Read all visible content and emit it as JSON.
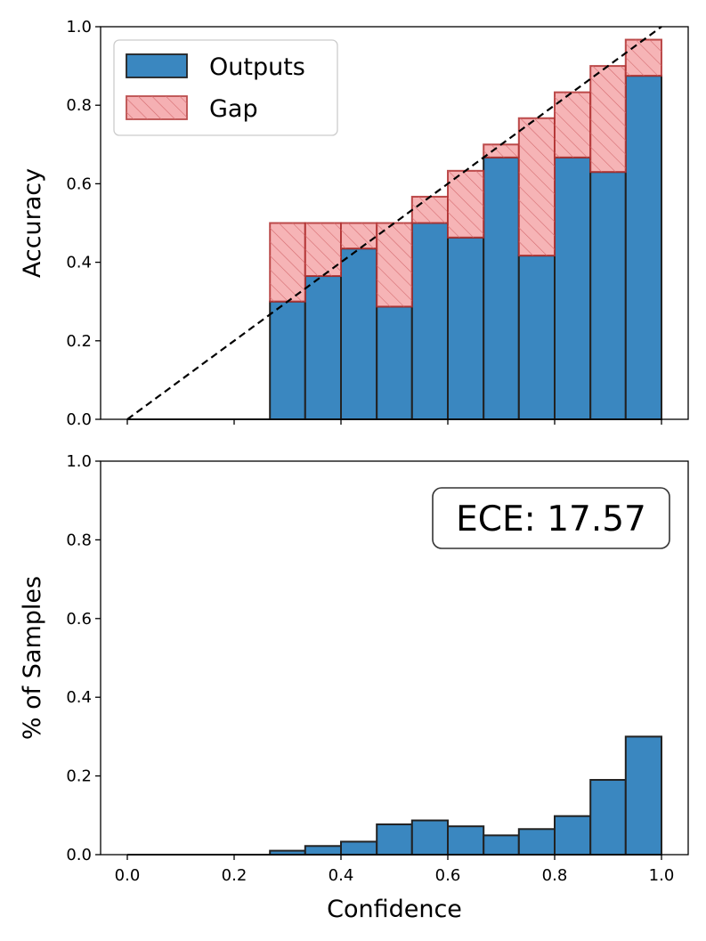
{
  "chart_data": [
    {
      "type": "bar",
      "subtype": "reliability-diagram",
      "title": "",
      "xlabel": "",
      "ylabel": "Accuracy",
      "xlim": [
        -0.05,
        1.05
      ],
      "ylim": [
        0.0,
        1.0
      ],
      "yticks": [
        "0.0",
        "0.2",
        "0.4",
        "0.6",
        "0.8",
        "1.0"
      ],
      "xtick_values": [
        0.0,
        0.2,
        0.4,
        0.6,
        0.8,
        1.0
      ],
      "grid": false,
      "legend": {
        "placement": "top-left",
        "entries": [
          "Outputs",
          "Gap"
        ]
      },
      "bin_edges": [
        0.267,
        0.333,
        0.4,
        0.467,
        0.533,
        0.6,
        0.667,
        0.733,
        0.8,
        0.867,
        0.933,
        1.0
      ],
      "series": [
        {
          "name": "Outputs",
          "color": "#3a87c0",
          "values": [
            0.3,
            0.365,
            0.435,
            0.287,
            0.5,
            0.463,
            0.667,
            0.417,
            0.667,
            0.63,
            0.875
          ]
        },
        {
          "name": "Gap",
          "color": "#f4a3a6",
          "edge_color": "#b03030",
          "values": [
            0.5,
            0.5,
            0.5,
            0.5,
            0.567,
            0.633,
            0.7,
            0.767,
            0.833,
            0.9,
            0.967
          ]
        }
      ],
      "diagonal": {
        "style": "dashed",
        "from": [
          0,
          0
        ],
        "to": [
          1,
          1
        ]
      }
    },
    {
      "type": "bar",
      "subtype": "confidence-histogram",
      "title": "",
      "xlabel": "Confidence",
      "ylabel": "% of Samples",
      "xlim": [
        -0.05,
        1.05
      ],
      "ylim": [
        0.0,
        1.0
      ],
      "xticks": [
        "0.0",
        "0.2",
        "0.4",
        "0.6",
        "0.8",
        "1.0"
      ],
      "yticks": [
        "0.0",
        "0.2",
        "0.4",
        "0.6",
        "0.8",
        "1.0"
      ],
      "grid": false,
      "bin_edges": [
        0.267,
        0.333,
        0.4,
        0.467,
        0.533,
        0.6,
        0.667,
        0.733,
        0.8,
        0.867,
        0.933,
        1.0
      ],
      "series": [
        {
          "name": "Samples",
          "color": "#3a87c0",
          "values": [
            0.01,
            0.022,
            0.033,
            0.077,
            0.087,
            0.072,
            0.049,
            0.065,
            0.098,
            0.19,
            0.3
          ]
        }
      ],
      "annotation": {
        "text": "ECE: 17.57",
        "placement": "top-right"
      }
    }
  ],
  "colors": {
    "outputs": "#3a87c0",
    "gap": "#f4a3a6",
    "gap_edge": "#b03030",
    "bar_edge": "#222222"
  }
}
